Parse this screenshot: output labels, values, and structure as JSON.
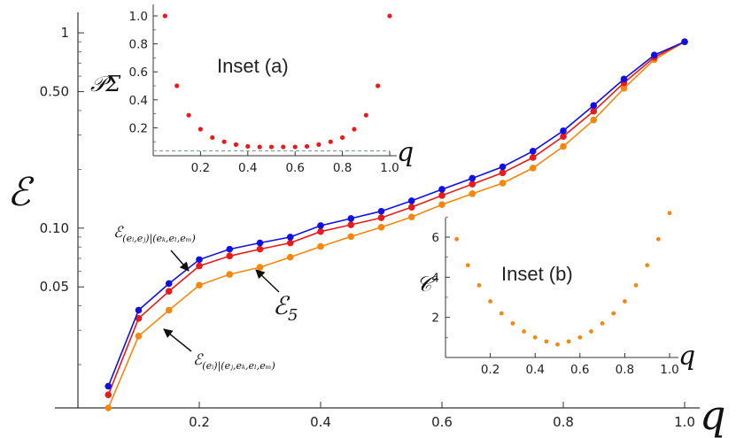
{
  "chart_data": [
    {
      "type": "line",
      "title": "",
      "xlabel": "q",
      "ylabel": "ℰ",
      "yscale": "log",
      "xlim": [
        0.0,
        1.0
      ],
      "ylim": [
        0.012,
        1.1
      ],
      "x_ticks": [
        "0.2",
        "0.4",
        "0.6",
        "0.8",
        "1.0"
      ],
      "y_ticks": [
        "0.05",
        "0.10",
        "0.50",
        "1"
      ],
      "x": [
        0.05,
        0.1,
        0.15,
        0.2,
        0.25,
        0.3,
        0.35,
        0.4,
        0.45,
        0.5,
        0.55,
        0.6,
        0.65,
        0.7,
        0.75,
        0.8,
        0.85,
        0.9,
        0.95,
        1.0
      ],
      "series": [
        {
          "name": "ℰ(e_i,e_j)|(e_k,e_l,e_m)",
          "color": "#1010e6",
          "values": [
            0.0155,
            0.038,
            0.052,
            0.069,
            0.078,
            0.084,
            0.09,
            0.103,
            0.112,
            0.122,
            0.138,
            0.158,
            0.18,
            0.206,
            0.248,
            0.315,
            0.425,
            0.58,
            0.77,
            0.9
          ]
        },
        {
          "name": "ℰ₅",
          "color": "#e81a1a",
          "values": [
            0.014,
            0.0345,
            0.0475,
            0.064,
            0.072,
            0.078,
            0.084,
            0.096,
            0.104,
            0.113,
            0.128,
            0.147,
            0.168,
            0.192,
            0.23,
            0.295,
            0.397,
            0.555,
            0.75,
            0.9
          ]
        },
        {
          "name": "ℰ(e_i)|(e_j,e_k,e_l,e_m)",
          "color": "#f5870f",
          "values": [
            0.012,
            0.028,
            0.038,
            0.051,
            0.058,
            0.063,
            0.071,
            0.0805,
            0.0905,
            0.101,
            0.114,
            0.132,
            0.15,
            0.17,
            0.203,
            0.262,
            0.358,
            0.52,
            0.73,
            0.9
          ]
        }
      ],
      "annotations": {
        "top_label": {
          "main": "ℰ",
          "sub": "(eᵢ,eⱼ)|(eₖ,eₗ,eₘ)"
        },
        "mid_label": {
          "main": "ℰ",
          "sub": "5"
        },
        "bottom_label": {
          "main": "ℰ",
          "sub": "(eᵢ)|(eⱼ,eₖ,eₗ,eₘ)"
        }
      }
    },
    {
      "type": "scatter",
      "title": "Inset (a)",
      "xlabel": "q",
      "ylabel": "𝒫Σ",
      "xlim": [
        0.0,
        1.0
      ],
      "ylim": [
        0.0,
        1.05
      ],
      "x_ticks": [
        "0.2",
        "0.4",
        "0.6",
        "0.8",
        "1.0"
      ],
      "y_ticks": [
        "0.2",
        "0.4",
        "0.6",
        "0.8",
        "1.0"
      ],
      "reference_line": 0.035,
      "color": "#e81a1a",
      "x": [
        0.05,
        0.1,
        0.15,
        0.2,
        0.25,
        0.3,
        0.35,
        0.4,
        0.45,
        0.5,
        0.55,
        0.6,
        0.65,
        0.7,
        0.75,
        0.8,
        0.85,
        0.9,
        0.95,
        1.0
      ],
      "values": [
        1.0,
        0.5,
        0.29,
        0.19,
        0.13,
        0.1,
        0.08,
        0.067,
        0.063,
        0.063,
        0.063,
        0.063,
        0.067,
        0.08,
        0.1,
        0.13,
        0.19,
        0.29,
        0.5,
        1.0
      ]
    },
    {
      "type": "scatter",
      "title": "Inset (b)",
      "xlabel": "q",
      "ylabel": "𝒞",
      "xlim": [
        0.0,
        1.0
      ],
      "ylim": [
        0.0,
        7.5
      ],
      "x_ticks": [
        "0.2",
        "0.4",
        "0.6",
        "0.8",
        "1.0"
      ],
      "y_ticks": [
        "2",
        "4",
        "6"
      ],
      "color": "#f5870f",
      "x": [
        0.05,
        0.1,
        0.15,
        0.2,
        0.25,
        0.3,
        0.35,
        0.4,
        0.45,
        0.5,
        0.55,
        0.6,
        0.65,
        0.7,
        0.75,
        0.8,
        0.85,
        0.9,
        0.95,
        1.0
      ],
      "values": [
        5.9,
        4.6,
        3.6,
        2.8,
        2.2,
        1.7,
        1.3,
        1.0,
        0.8,
        0.65,
        0.8,
        1.0,
        1.3,
        1.7,
        2.2,
        2.8,
        3.6,
        4.6,
        5.9,
        7.2
      ]
    }
  ]
}
